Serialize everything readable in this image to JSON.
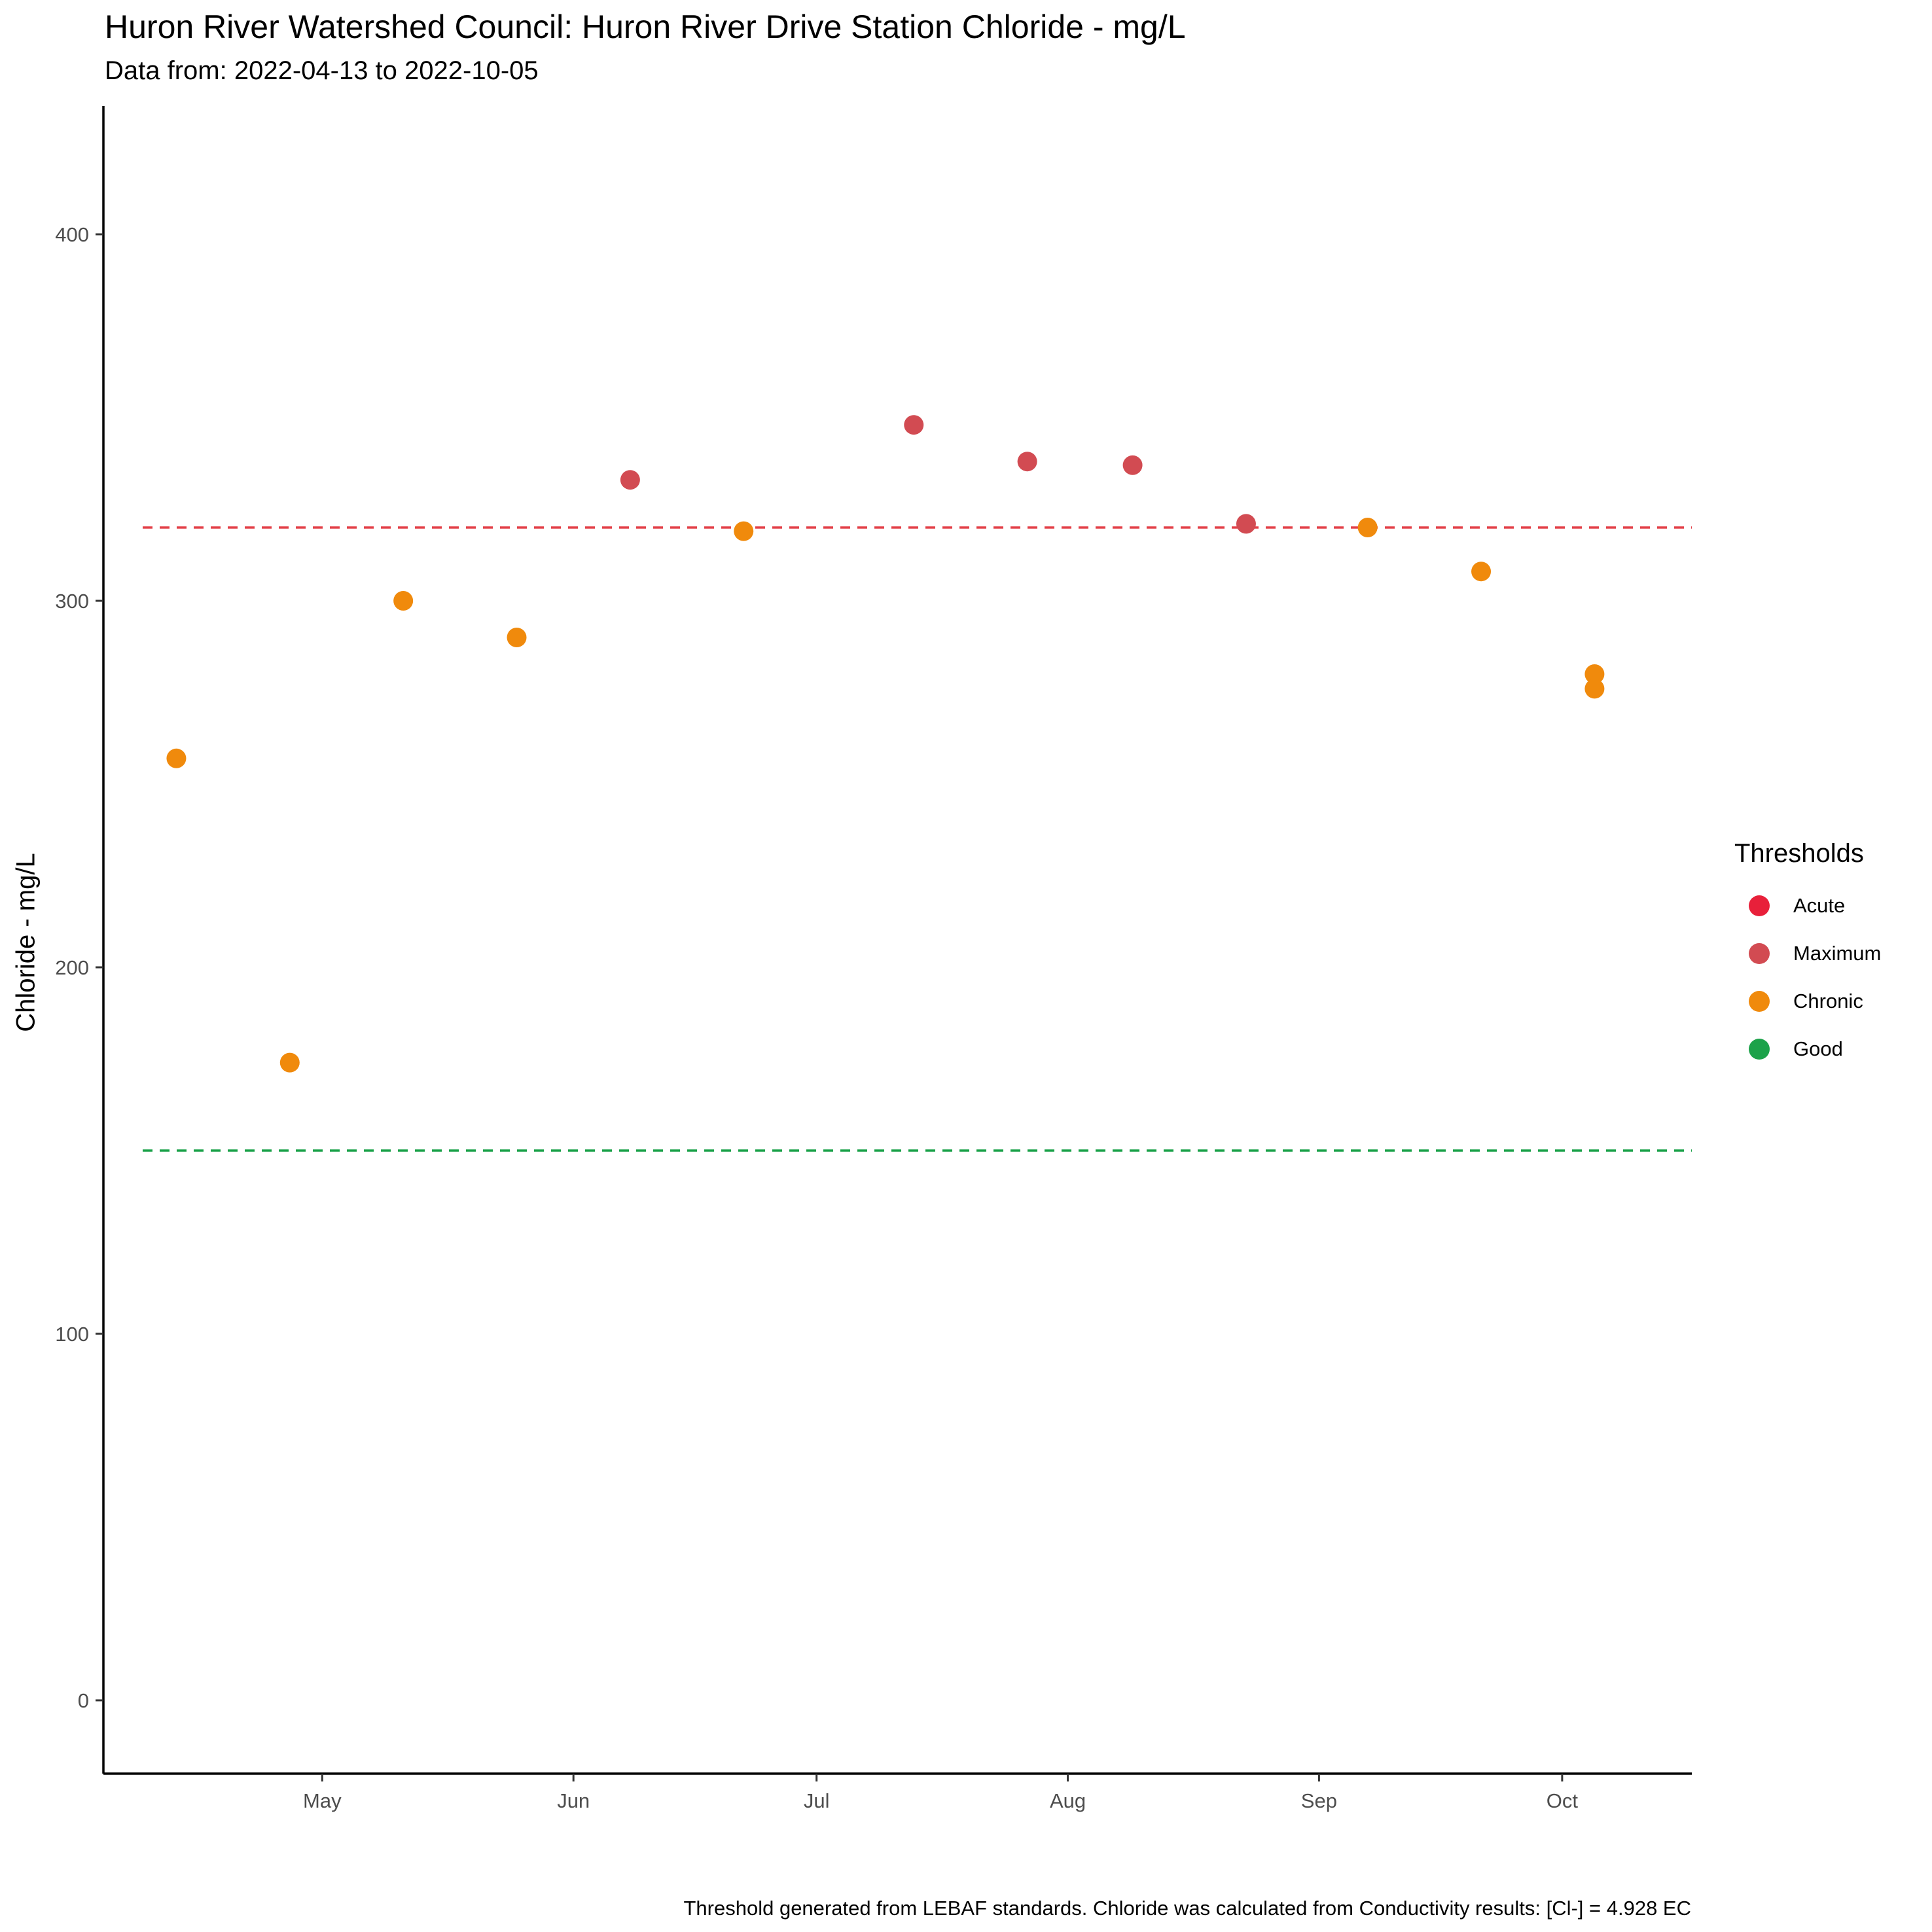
{
  "chart_data": {
    "type": "scatter",
    "title": "Huron River Watershed Council: Huron River Drive Station Chloride - mg/L",
    "subtitle": "Data from: 2022-04-13 to 2022-10-05",
    "ylabel": "Chloride - mg/L",
    "xlabel": "",
    "caption": "Threshold generated from LEBAF standards. Chloride was calculated from Conductivity results: [Cl-] = 4.928 EC",
    "ylim": [
      -20,
      435
    ],
    "xlim": [
      "2022-04-04",
      "2022-10-17"
    ],
    "y_ticks": [
      0,
      100,
      200,
      300,
      400
    ],
    "x_ticks": [
      {
        "date": "2022-05-01",
        "label": "May"
      },
      {
        "date": "2022-06-01",
        "label": "Jun"
      },
      {
        "date": "2022-07-01",
        "label": "Jul"
      },
      {
        "date": "2022-08-01",
        "label": "Aug"
      },
      {
        "date": "2022-09-01",
        "label": "Sep"
      },
      {
        "date": "2022-10-01",
        "label": "Oct"
      }
    ],
    "grid": false,
    "legend_position": "right",
    "legend": {
      "title": "Thresholds",
      "items": [
        {
          "label": "Acute",
          "color": "#e8203a"
        },
        {
          "label": "Maximum",
          "color": "#d24b52"
        },
        {
          "label": "Chronic",
          "color": "#f08a0c"
        },
        {
          "label": "Good",
          "color": "#1ca24a"
        }
      ]
    },
    "reference_lines": [
      {
        "y": 320,
        "color": "#e3424a",
        "style": "dashed"
      },
      {
        "y": 150,
        "color": "#1ca24a",
        "style": "dashed"
      }
    ],
    "points": [
      {
        "date": "2022-04-13",
        "y": 257,
        "category": "Chronic"
      },
      {
        "date": "2022-04-27",
        "y": 174,
        "category": "Chronic"
      },
      {
        "date": "2022-05-11",
        "y": 300,
        "category": "Chronic"
      },
      {
        "date": "2022-05-25",
        "y": 290,
        "category": "Chronic"
      },
      {
        "date": "2022-06-08",
        "y": 333,
        "category": "Maximum"
      },
      {
        "date": "2022-06-22",
        "y": 319,
        "category": "Chronic"
      },
      {
        "date": "2022-07-13",
        "y": 348,
        "category": "Maximum"
      },
      {
        "date": "2022-07-27",
        "y": 338,
        "category": "Maximum"
      },
      {
        "date": "2022-08-09",
        "y": 337,
        "category": "Maximum"
      },
      {
        "date": "2022-08-23",
        "y": 321,
        "category": "Maximum"
      },
      {
        "date": "2022-09-07",
        "y": 320,
        "category": "Chronic"
      },
      {
        "date": "2022-09-21",
        "y": 308,
        "category": "Chronic"
      },
      {
        "date": "2022-10-05",
        "y": 280,
        "category": "Chronic"
      },
      {
        "date": "2022-10-05",
        "y": 276,
        "category": "Chronic"
      }
    ]
  }
}
